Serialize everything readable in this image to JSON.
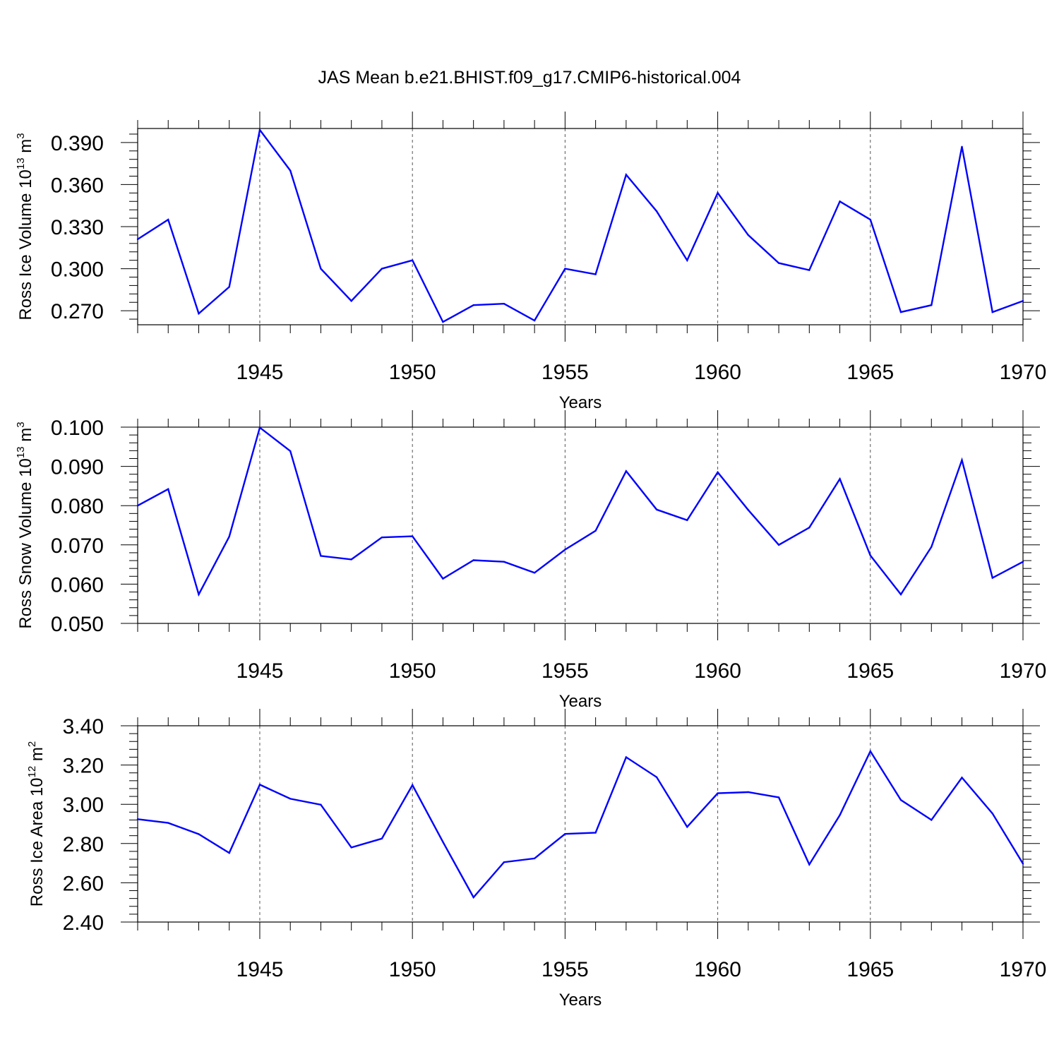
{
  "title": "JAS Mean b.e21.BHIST.f09_g17.CMIP6-historical.004",
  "line_color": "#0000ff",
  "chart_data": [
    {
      "type": "line",
      "ylabel": {
        "text": "Ross Ice Volume 10",
        "exp": "13",
        "unit": " m",
        "unit_exp": "3"
      },
      "xlabel": "Years",
      "xlim": [
        1941,
        1970
      ],
      "ylim": [
        0.26,
        0.4
      ],
      "yticks": [
        0.27,
        0.3,
        0.33,
        0.36,
        0.39
      ],
      "ytick_labels": [
        "0.270",
        "0.300",
        "0.330",
        "0.360",
        "0.390"
      ],
      "xticks": [
        1945,
        1950,
        1955,
        1960,
        1965,
        1970
      ],
      "xtick_labels": [
        "1945",
        "1950",
        "1955",
        "1960",
        "1965",
        "1970"
      ],
      "x": [
        1941,
        1942,
        1943,
        1944,
        1945,
        1946,
        1947,
        1948,
        1949,
        1950,
        1951,
        1952,
        1953,
        1954,
        1955,
        1956,
        1957,
        1958,
        1959,
        1960,
        1961,
        1962,
        1963,
        1964,
        1965,
        1966,
        1967,
        1968,
        1969,
        1970
      ],
      "values": [
        0.321,
        0.335,
        0.268,
        0.287,
        0.399,
        0.37,
        0.3,
        0.277,
        0.3,
        0.306,
        0.262,
        0.274,
        0.275,
        0.263,
        0.3,
        0.296,
        0.367,
        0.341,
        0.306,
        0.354,
        0.324,
        0.304,
        0.299,
        0.348,
        0.335,
        0.269,
        0.274,
        0.387,
        0.269,
        0.277
      ]
    },
    {
      "type": "line",
      "ylabel": {
        "text": "Ross Snow Volume 10",
        "exp": "13",
        "unit": " m",
        "unit_exp": "3"
      },
      "xlabel": "Years",
      "xlim": [
        1941,
        1970
      ],
      "ylim": [
        0.05,
        0.1
      ],
      "yticks": [
        0.05,
        0.06,
        0.07,
        0.08,
        0.09,
        0.1
      ],
      "ytick_labels": [
        "0.050",
        "0.060",
        "0.070",
        "0.080",
        "0.090",
        "0.100"
      ],
      "xticks": [
        1945,
        1950,
        1955,
        1960,
        1965,
        1970
      ],
      "xtick_labels": [
        "1945",
        "1950",
        "1955",
        "1960",
        "1965",
        "1970"
      ],
      "x": [
        1941,
        1942,
        1943,
        1944,
        1945,
        1946,
        1947,
        1948,
        1949,
        1950,
        1951,
        1952,
        1953,
        1954,
        1955,
        1956,
        1957,
        1958,
        1959,
        1960,
        1961,
        1962,
        1963,
        1964,
        1965,
        1966,
        1967,
        1968,
        1969,
        1970
      ],
      "values": [
        0.08,
        0.0842,
        0.0574,
        0.0721,
        0.0999,
        0.0939,
        0.0672,
        0.0663,
        0.0719,
        0.0722,
        0.0614,
        0.0661,
        0.0657,
        0.0629,
        0.0688,
        0.0736,
        0.0888,
        0.079,
        0.0763,
        0.0885,
        0.0789,
        0.07,
        0.0744,
        0.0868,
        0.0673,
        0.0574,
        0.0695,
        0.0916,
        0.0616,
        0.0657
      ]
    },
    {
      "type": "line",
      "ylabel": {
        "text": "Ross Ice Area 10",
        "exp": "12",
        "unit": " m",
        "unit_exp": "2"
      },
      "xlabel": "Years",
      "xlim": [
        1941,
        1970
      ],
      "ylim": [
        2.4,
        3.4
      ],
      "yticks": [
        2.4,
        2.6,
        2.8,
        3.0,
        3.2,
        3.4
      ],
      "ytick_labels": [
        "2.40",
        "2.60",
        "2.80",
        "3.00",
        "3.20",
        "3.40"
      ],
      "xticks": [
        1945,
        1950,
        1955,
        1960,
        1965,
        1970
      ],
      "xtick_labels": [
        "1945",
        "1950",
        "1955",
        "1960",
        "1965",
        "1970"
      ],
      "x": [
        1941,
        1942,
        1943,
        1944,
        1945,
        1946,
        1947,
        1948,
        1949,
        1950,
        1951,
        1952,
        1953,
        1954,
        1955,
        1956,
        1957,
        1958,
        1959,
        1960,
        1961,
        1962,
        1963,
        1964,
        1965,
        1966,
        1967,
        1968,
        1969,
        1970
      ],
      "values": [
        2.924,
        2.905,
        2.848,
        2.752,
        3.1,
        3.028,
        2.998,
        2.78,
        2.825,
        3.098,
        2.808,
        2.526,
        2.705,
        2.724,
        2.849,
        2.855,
        3.24,
        3.138,
        2.885,
        3.056,
        3.062,
        3.035,
        2.693,
        2.945,
        3.27,
        3.022,
        2.92,
        3.136,
        2.953,
        2.697
      ]
    }
  ]
}
